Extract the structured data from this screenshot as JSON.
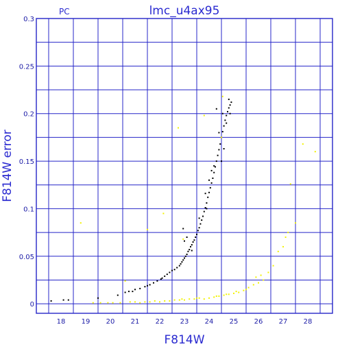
{
  "chart_data": {
    "type": "scatter",
    "title": "lmc_u4ax95",
    "corner_label": "PC",
    "xlabel": "F814W",
    "ylabel": "F814W error",
    "xlim": [
      17.0,
      29.0
    ],
    "ylim": [
      -0.01,
      0.3
    ],
    "x_ticks": [
      18,
      19,
      20,
      21,
      22,
      23,
      24,
      25,
      26,
      27,
      28
    ],
    "x_tick_labels": [
      "18",
      "19",
      "20",
      "21",
      "22",
      "23",
      "24",
      "25",
      "26",
      "27",
      "28"
    ],
    "y_ticks": [
      0,
      0.05,
      0.1,
      0.15,
      0.2,
      0.25,
      0.3
    ],
    "y_tick_labels": [
      "0",
      "0.05",
      "0.1",
      "0.15",
      "0.2",
      "0.25",
      "0.3"
    ],
    "x_gridlines": [
      17.5,
      18.5,
      19.5,
      20.5,
      21.5,
      22.5,
      23.5,
      24.5,
      25.5,
      26.5,
      27.5,
      28.5
    ],
    "y_gridlines": [
      0,
      0.025,
      0.05,
      0.075,
      0.1,
      0.125,
      0.15,
      0.175,
      0.2,
      0.225,
      0.25,
      0.275,
      0.3
    ],
    "grid": true,
    "colors": {
      "grid": "#2424c8",
      "text": "#2a2ad0",
      "series_black": "#000000",
      "series_yellow": "#f2f200"
    },
    "series": [
      {
        "color": "#000000",
        "points": [
          [
            17.6,
            0.003
          ],
          [
            18.1,
            0.004
          ],
          [
            18.3,
            0.004
          ],
          [
            19.5,
            0.006
          ],
          [
            20.3,
            0.009
          ],
          [
            20.6,
            0.012
          ],
          [
            20.75,
            0.013
          ],
          [
            20.9,
            0.013
          ],
          [
            21.0,
            0.015
          ],
          [
            21.2,
            0.016
          ],
          [
            21.4,
            0.018
          ],
          [
            21.5,
            0.019
          ],
          [
            21.6,
            0.02
          ],
          [
            21.75,
            0.022
          ],
          [
            21.9,
            0.024
          ],
          [
            22.05,
            0.026
          ],
          [
            22.1,
            0.027
          ],
          [
            22.2,
            0.029
          ],
          [
            22.3,
            0.031
          ],
          [
            22.4,
            0.033
          ],
          [
            22.5,
            0.035
          ],
          [
            22.6,
            0.036
          ],
          [
            22.7,
            0.038
          ],
          [
            22.8,
            0.04
          ],
          [
            22.85,
            0.042
          ],
          [
            22.9,
            0.044
          ],
          [
            22.95,
            0.046
          ],
          [
            23.0,
            0.048
          ],
          [
            23.05,
            0.05
          ],
          [
            23.1,
            0.052
          ],
          [
            23.15,
            0.055
          ],
          [
            23.2,
            0.057
          ],
          [
            23.25,
            0.06
          ],
          [
            23.3,
            0.062
          ],
          [
            23.35,
            0.065
          ],
          [
            23.4,
            0.067
          ],
          [
            23.45,
            0.07
          ],
          [
            23.5,
            0.073
          ],
          [
            23.55,
            0.077
          ],
          [
            23.6,
            0.08
          ],
          [
            23.65,
            0.084
          ],
          [
            23.7,
            0.088
          ],
          [
            23.75,
            0.092
          ],
          [
            23.8,
            0.097
          ],
          [
            23.85,
            0.101
          ],
          [
            23.9,
            0.106
          ],
          [
            23.95,
            0.112
          ],
          [
            24.0,
            0.117
          ],
          [
            24.05,
            0.122
          ],
          [
            24.1,
            0.127
          ],
          [
            24.15,
            0.132
          ],
          [
            24.2,
            0.138
          ],
          [
            24.25,
            0.144
          ],
          [
            24.3,
            0.15
          ],
          [
            24.35,
            0.156
          ],
          [
            24.4,
            0.162
          ],
          [
            24.45,
            0.168
          ],
          [
            24.5,
            0.175
          ],
          [
            24.55,
            0.181
          ],
          [
            24.6,
            0.187
          ],
          [
            24.65,
            0.193
          ],
          [
            24.7,
            0.198
          ],
          [
            24.75,
            0.202
          ],
          [
            24.8,
            0.206
          ],
          [
            24.85,
            0.209
          ],
          [
            24.9,
            0.212
          ],
          [
            22.95,
            0.079
          ],
          [
            23.1,
            0.07
          ],
          [
            23.0,
            0.066
          ],
          [
            23.3,
            0.056
          ],
          [
            23.6,
            0.09
          ],
          [
            23.85,
            0.116
          ],
          [
            24.1,
            0.14
          ],
          [
            24.4,
            0.18
          ],
          [
            24.55,
            0.2
          ],
          [
            24.7,
            0.19
          ],
          [
            24.8,
            0.215
          ],
          [
            24.85,
            0.2
          ],
          [
            24.3,
            0.205
          ],
          [
            24.6,
            0.163
          ],
          [
            24.5,
            0.15
          ],
          [
            24.2,
            0.145
          ],
          [
            23.9,
            0.1
          ],
          [
            24.0,
            0.13
          ]
        ]
      },
      {
        "color": "#f2f200",
        "points": [
          [
            18.8,
            0.085
          ],
          [
            19.3,
            0.001
          ],
          [
            19.6,
            0.001
          ],
          [
            19.9,
            0.001
          ],
          [
            20.1,
            0.001
          ],
          [
            20.4,
            0.001
          ],
          [
            20.6,
            0.024
          ],
          [
            20.8,
            0.002
          ],
          [
            21.0,
            0.002
          ],
          [
            21.2,
            0.001
          ],
          [
            21.4,
            0.002
          ],
          [
            21.5,
            0.078
          ],
          [
            21.6,
            0.002
          ],
          [
            21.8,
            0.003
          ],
          [
            22.0,
            0.002
          ],
          [
            22.15,
            0.095
          ],
          [
            22.2,
            0.003
          ],
          [
            22.4,
            0.003
          ],
          [
            22.6,
            0.004
          ],
          [
            22.75,
            0.185
          ],
          [
            22.8,
            0.004
          ],
          [
            22.95,
            0.068
          ],
          [
            23.0,
            0.004
          ],
          [
            23.2,
            0.005
          ],
          [
            23.4,
            0.005
          ],
          [
            23.6,
            0.006
          ],
          [
            23.8,
            0.005
          ],
          [
            23.8,
            0.198
          ],
          [
            24.0,
            0.006
          ],
          [
            24.2,
            0.007
          ],
          [
            24.4,
            0.008
          ],
          [
            24.5,
            0.175
          ],
          [
            24.55,
            0.218
          ],
          [
            24.6,
            0.009
          ],
          [
            24.8,
            0.01
          ],
          [
            25.0,
            0.011
          ],
          [
            25.2,
            0.012
          ],
          [
            25.4,
            0.014
          ],
          [
            25.6,
            0.017
          ],
          [
            25.8,
            0.02
          ],
          [
            25.9,
            0.028
          ],
          [
            26.0,
            0.022
          ],
          [
            26.1,
            0.03
          ],
          [
            26.2,
            0.025
          ],
          [
            26.4,
            0.033
          ],
          [
            26.6,
            0.04
          ],
          [
            26.8,
            0.055
          ],
          [
            27.0,
            0.06
          ],
          [
            27.1,
            0.07
          ],
          [
            27.2,
            0.075
          ],
          [
            27.3,
            0.126
          ],
          [
            27.5,
            0.085
          ],
          [
            27.8,
            0.168
          ],
          [
            28.3,
            0.16
          ],
          [
            24.3,
            0.008
          ],
          [
            24.7,
            0.01
          ],
          [
            25.1,
            0.013
          ],
          [
            25.5,
            0.015
          ],
          [
            23.5,
            0.006
          ],
          [
            22.9,
            0.005
          ]
        ]
      }
    ]
  }
}
